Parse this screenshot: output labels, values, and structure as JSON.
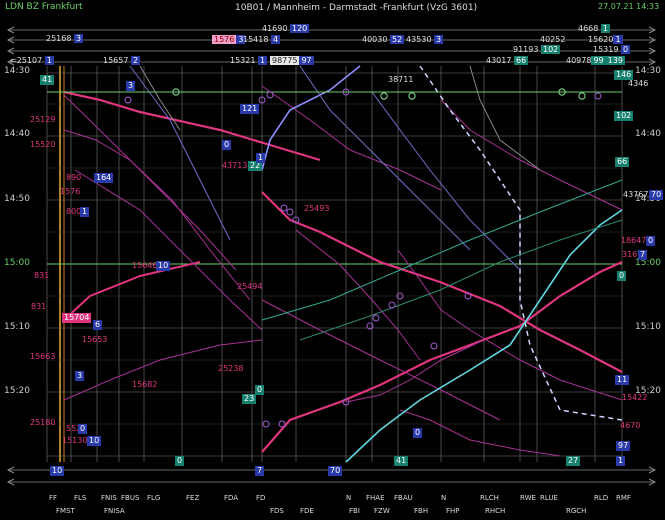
{
  "window": {
    "title_left": "LDN BZ Frankfurt",
    "title_center": "10B01 / Mannheim - Darmstadt -Frankfurt  (VzG 3601)",
    "timestamp": "27.07.21 14:33"
  },
  "header_row1": [
    {
      "id": "h1",
      "number": "25168",
      "badge": "3",
      "color": "blue"
    },
    {
      "id": "h2",
      "number": "41690",
      "badge": "120",
      "color": "blue"
    },
    {
      "id": "h3",
      "number": "4668",
      "badge": "1",
      "color": "teal"
    }
  ],
  "header_row2": [
    {
      "id": "h4",
      "number": "1576",
      "badge": "3",
      "color": "white"
    },
    {
      "id": "h5",
      "number": "15418",
      "badge": "4",
      "color": "blue"
    },
    {
      "id": "h6",
      "number": "40030",
      "badge": "52",
      "color": "blue"
    },
    {
      "id": "h7",
      "number": "43530",
      "badge": "3",
      "color": "blue"
    },
    {
      "id": "h8",
      "number": "40252",
      "badge": "",
      "color": "blue"
    },
    {
      "id": "h9",
      "number": "15620",
      "badge": "1",
      "color": "blue"
    }
  ],
  "header_row3": [
    {
      "id": "h10",
      "number": "15657",
      "badge": "2",
      "color": "blue"
    },
    {
      "id": "h11",
      "number": "91193",
      "badge": "102",
      "color": "teal"
    },
    {
      "id": "h12",
      "number": "15319",
      "badge": "0",
      "color": "blue"
    }
  ],
  "header_row4": [
    {
      "id": "h13",
      "number": "25107",
      "badge": "1",
      "color": "blue"
    },
    {
      "id": "h14",
      "number": "15321",
      "badge": "1",
      "color": "blue"
    },
    {
      "id": "h15",
      "number": "98775",
      "badge": "97",
      "color": "white"
    },
    {
      "id": "h16",
      "number": "43017",
      "badge": "66",
      "color": "teal"
    },
    {
      "id": "h17",
      "number": "40978",
      "badge": "",
      "color": "teal"
    },
    {
      "id": "h18",
      "number": "99",
      "badge": "139",
      "color": "teal"
    }
  ],
  "time_axis": {
    "left": [
      "14:30",
      "14:40",
      "14:50",
      "15:00",
      "15:10",
      "15:20"
    ],
    "right": [
      "14:30",
      "14:40",
      "14:50",
      "15:00",
      "15:10",
      "15:20"
    ]
  },
  "stations_top": [
    "FF",
    "FLS",
    "FNIS",
    "FBUS",
    "FLG",
    "FEZ",
    "FDA",
    "FD",
    "N",
    "FHAE",
    "FBAU",
    "N",
    "RLCH",
    "RWE",
    "RLUE",
    "RLD",
    "RMF"
  ],
  "stations_bottom": [
    "FMST",
    "FNISA",
    "FDS",
    "FDE",
    "FBI",
    "FZW",
    "FBH",
    "FHP",
    "RHCH",
    "RGCH"
  ],
  "train_labels_pink": [
    {
      "id": "p1",
      "text": "25129"
    },
    {
      "id": "p2",
      "text": "15520"
    },
    {
      "id": "p3",
      "text": "890"
    },
    {
      "id": "p4",
      "text": "1576"
    },
    {
      "id": "p5",
      "text": "800"
    },
    {
      "id": "p6",
      "text": "15646"
    },
    {
      "id": "p7",
      "text": "25493"
    },
    {
      "id": "p8",
      "text": "25494"
    },
    {
      "id": "p9",
      "text": "15653"
    },
    {
      "id": "p10",
      "text": "15663"
    },
    {
      "id": "p11",
      "text": "15682"
    },
    {
      "id": "p12",
      "text": "25238"
    },
    {
      "id": "p13",
      "text": "25180"
    },
    {
      "id": "p14",
      "text": "5521"
    },
    {
      "id": "p15",
      "text": "15130"
    },
    {
      "id": "p16",
      "text": "18647"
    },
    {
      "id": "p17",
      "text": "15422"
    },
    {
      "id": "p18",
      "text": "4670"
    },
    {
      "id": "p19",
      "text": "831"
    },
    {
      "id": "p20",
      "text": "831"
    },
    {
      "id": "p21",
      "text": "43713"
    },
    {
      "id": "p22",
      "text": "38711"
    },
    {
      "id": "p23",
      "text": "4346"
    },
    {
      "id": "p24",
      "text": "43767"
    },
    {
      "id": "p25",
      "text": "15704"
    },
    {
      "id": "p26",
      "text": "316"
    }
  ],
  "badges": [
    {
      "id": "b1",
      "text": "3",
      "color": "blue"
    },
    {
      "id": "b2",
      "text": "41",
      "color": "teal"
    },
    {
      "id": "b3",
      "text": "121",
      "color": "blue"
    },
    {
      "id": "b4",
      "text": "0",
      "color": "blue"
    },
    {
      "id": "b5",
      "text": "22",
      "color": "teal"
    },
    {
      "id": "b6",
      "text": "1",
      "color": "blue"
    },
    {
      "id": "b7",
      "text": "164",
      "color": "blue"
    },
    {
      "id": "b8",
      "text": "10",
      "color": "blue"
    },
    {
      "id": "b9",
      "text": "6",
      "color": "blue"
    },
    {
      "id": "b10",
      "text": "3",
      "color": "blue"
    },
    {
      "id": "b11",
      "text": "0",
      "color": "teal"
    },
    {
      "id": "b12",
      "text": "23",
      "color": "teal"
    },
    {
      "id": "b13",
      "text": "0",
      "color": "blue"
    },
    {
      "id": "b14",
      "text": "102",
      "color": "teal"
    },
    {
      "id": "b15",
      "text": "66",
      "color": "teal"
    },
    {
      "id": "b16",
      "text": "70",
      "color": "blue"
    },
    {
      "id": "b17",
      "text": "0",
      "color": "teal"
    },
    {
      "id": "b18",
      "text": "11",
      "color": "blue"
    },
    {
      "id": "b19",
      "text": "97",
      "color": "blue"
    },
    {
      "id": "b20",
      "text": "146",
      "color": "teal"
    },
    {
      "id": "b21",
      "text": "10",
      "color": "blue"
    },
    {
      "id": "b22",
      "text": "0",
      "color": "teal"
    },
    {
      "id": "b23",
      "text": "7",
      "color": "blue"
    },
    {
      "id": "b24",
      "text": "70",
      "color": "blue"
    },
    {
      "id": "b25",
      "text": "41",
      "color": "teal"
    },
    {
      "id": "b26",
      "text": "27",
      "color": "teal"
    },
    {
      "id": "b27",
      "text": "1",
      "color": "blue"
    },
    {
      "id": "b28",
      "text": "0",
      "color": "blue"
    },
    {
      "id": "b29",
      "text": "10",
      "color": "blue"
    },
    {
      "id": "b30",
      "text": "0",
      "color": "blue"
    },
    {
      "id": "b31",
      "text": "7",
      "color": "blue"
    },
    {
      "id": "b32",
      "text": "1",
      "color": "blue"
    }
  ],
  "colors": {
    "background": "#000000",
    "grid": "#7a7a7a",
    "hour_line": "#6cd16a",
    "pink": "#e0357f",
    "magenta": "#b03aa0",
    "cyan": "#5fd8e0",
    "lavender": "#8f8fff",
    "teal": "#18806e",
    "blue": "#2a3aa8",
    "yellow": "#e0b030"
  }
}
